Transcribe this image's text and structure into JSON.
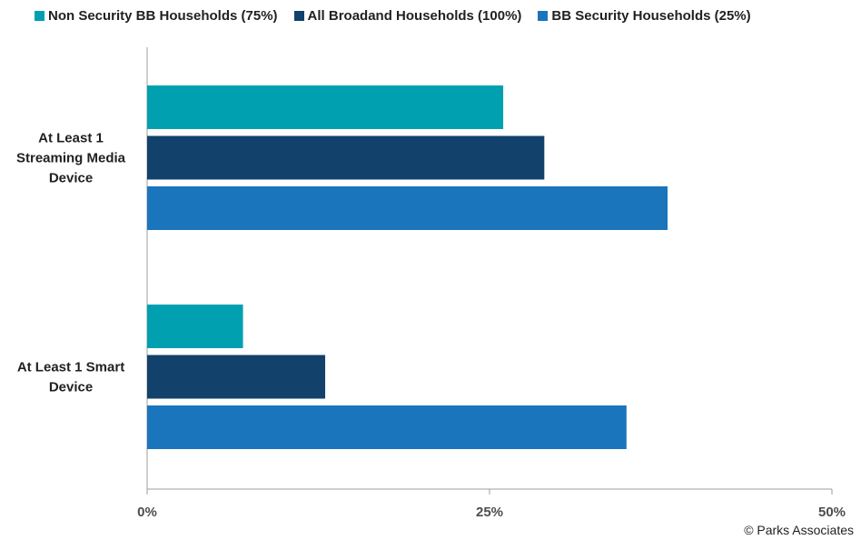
{
  "chart_data": {
    "type": "bar",
    "orientation": "horizontal",
    "categories": [
      "At Least 1 Streaming Media Device",
      "At Least 1 Smart Device"
    ],
    "category_label_lines": [
      [
        "At Least 1",
        "Streaming Media",
        "Device"
      ],
      [
        "At Least 1 Smart",
        "Device"
      ]
    ],
    "series": [
      {
        "name": "Non Security BB Households (75%)",
        "color": "#00a0b0",
        "values": [
          26,
          7
        ]
      },
      {
        "name": "All Broadand Households (100%)",
        "color": "#12416b",
        "values": [
          29,
          13
        ]
      },
      {
        "name": "BB Security Households (25%)",
        "color": "#1b75bc",
        "values": [
          38,
          35
        ]
      }
    ],
    "xlim": [
      0,
      50
    ],
    "ticks": [
      0,
      25,
      50
    ],
    "tick_labels": [
      "0%",
      "25%",
      "50%"
    ],
    "legend_position": "top",
    "grid": false
  },
  "source": "© Parks Associates"
}
